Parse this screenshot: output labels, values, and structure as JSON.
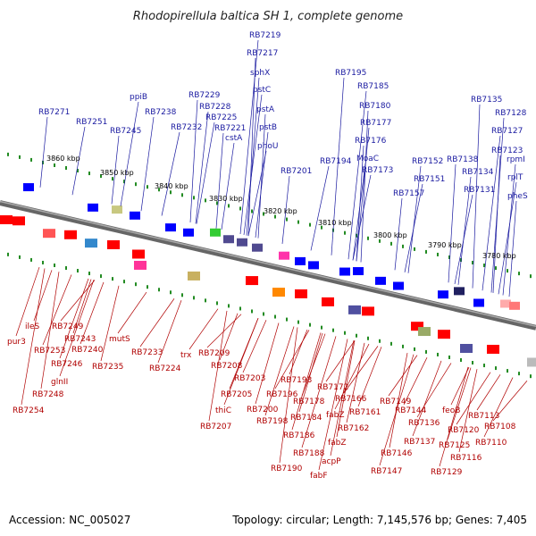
{
  "title": "Rhodopirellula baltica SH 1, complete genome",
  "accession": "Accession: NC_005027",
  "summary": "Topology: circular; Length: 7,145,576 bp; Genes: 7,405",
  "scale_labels": [
    "3860 kbp",
    "3850 kbp",
    "3840 kbp",
    "3830 kbp",
    "3820 kbp",
    "3810 kbp",
    "3800 kbp",
    "3790 kbp",
    "3780 kbp"
  ],
  "colors": {
    "forward_gene": "#0000ff",
    "reverse_gene": "#ff0000",
    "backbone": "#808080",
    "top_labels": "#1a1aa0",
    "bottom_labels": "#b00000",
    "ticks": "#228b22"
  },
  "top_labels": [
    "RB7271",
    "RB7251",
    "ppiB",
    "RB7245",
    "RB7238",
    "RB7232",
    "RB7229",
    "RB7228",
    "RB7225",
    "RB7221",
    "cstA",
    "RB7219",
    "RB7217",
    "sphX",
    "pstC",
    "pstA",
    "pstB",
    "phoU",
    "RB7201",
    "RB7195",
    "RB7185",
    "RB7180",
    "RB7177",
    "RB7194",
    "RB7176",
    "MoaC",
    "RB7173",
    "RB7157",
    "RB7152",
    "RB7151",
    "RB7138",
    "RB7134",
    "RB7131",
    "RB7135",
    "RB7128",
    "RB7127",
    "RB7123",
    "rpmI",
    "rplT",
    "pheS"
  ],
  "bottom_labels": [
    "ileS",
    "pur3",
    "RB7253",
    "RB7249",
    "RB7243",
    "RB7240",
    "RB7246",
    "glnII",
    "RB7248",
    "RB7254",
    "mutS",
    "RB7233",
    "RB7235",
    "RB7224",
    "trx",
    "RB7209",
    "RB7208",
    "RB7203",
    "RB7205",
    "thiC",
    "RB7207",
    "RB7200",
    "RB7198",
    "RB7196",
    "RB7193",
    "RB7184",
    "RB7186",
    "RB7188",
    "RB7190",
    "RB7178",
    "RB7172",
    "fabZ",
    "fabZ",
    "acpP",
    "fabF",
    "RB7166",
    "RB7162",
    "RB7161",
    "RB7149",
    "RB7147",
    "RB7146",
    "RB7144",
    "RB7137",
    "RB7136",
    "feoB",
    "RB7125",
    "RB7129",
    "RB7120",
    "RB7116",
    "RB7113",
    "RB7110",
    "RB7108"
  ]
}
